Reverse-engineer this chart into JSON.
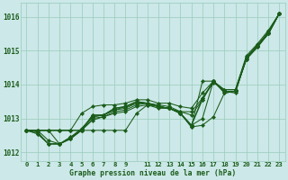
{
  "title": "Graphe pression niveau de la mer (hPa)",
  "bg_color": "#cce8e8",
  "grid_color": "#99ccbb",
  "line_color": "#1a5c1a",
  "xlim": [
    -0.5,
    23.5
  ],
  "ylim": [
    1011.75,
    1016.4
  ],
  "yticks": [
    1012,
    1013,
    1014,
    1015,
    1016
  ],
  "xticks": [
    0,
    1,
    2,
    3,
    4,
    5,
    6,
    7,
    8,
    9,
    10,
    11,
    12,
    13,
    14,
    15,
    16,
    17,
    18,
    19,
    20,
    21,
    22,
    23
  ],
  "xtick_labels": [
    "0",
    "1",
    "2",
    "3",
    "4",
    "5",
    "6",
    "7",
    "8",
    "9",
    "",
    "11",
    "12",
    "13",
    "14",
    "15",
    "16",
    "17",
    "18",
    "19",
    "20",
    "21",
    "22",
    "23"
  ],
  "series": [
    [
      1012.65,
      1012.65,
      1012.65,
      1012.25,
      1012.45,
      1012.65,
      1012.95,
      1013.05,
      1013.15,
      1013.2,
      1013.35,
      1013.4,
      1013.3,
      1013.3,
      1013.15,
      1012.75,
      1012.8,
      1013.05,
      1013.75,
      1013.8,
      1014.75,
      1015.15,
      1015.5,
      1016.1
    ],
    [
      1012.65,
      1012.65,
      1012.35,
      1012.25,
      1012.45,
      1012.7,
      1013.05,
      1013.1,
      1013.25,
      1013.3,
      1013.45,
      1013.45,
      1013.35,
      1013.3,
      1013.15,
      1012.8,
      1013.55,
      1014.1,
      1013.8,
      1013.8,
      1014.75,
      1015.1,
      1015.5,
      1016.1
    ],
    [
      1012.65,
      1012.55,
      1012.25,
      1012.25,
      1012.4,
      1012.7,
      1013.05,
      1013.1,
      1013.25,
      1013.35,
      1013.45,
      1013.45,
      1013.35,
      1013.3,
      1013.15,
      1012.8,
      1013.6,
      1014.1,
      1013.8,
      1013.8,
      1014.75,
      1015.1,
      1015.5,
      1016.1
    ],
    [
      1012.65,
      1012.55,
      1012.25,
      1012.25,
      1012.4,
      1012.65,
      1013.1,
      1013.1,
      1013.3,
      1013.35,
      1013.5,
      1013.45,
      1013.35,
      1013.3,
      1013.15,
      1012.75,
      1014.1,
      1014.1,
      1013.8,
      1013.75,
      1014.8,
      1015.15,
      1015.5,
      1016.1
    ],
    [
      1012.65,
      1012.6,
      1012.25,
      1012.25,
      1012.4,
      1012.65,
      1013.1,
      1013.1,
      1013.3,
      1013.35,
      1013.5,
      1013.45,
      1013.35,
      1013.3,
      1013.15,
      1012.8,
      1013.0,
      1014.1,
      1013.75,
      1013.8,
      1014.8,
      1015.15,
      1015.55,
      1016.1
    ]
  ],
  "top_series": [
    1012.65,
    1012.65,
    1012.65,
    1012.65,
    1012.65,
    1012.65,
    1013.0,
    1013.05,
    1013.2,
    1013.25,
    1013.4,
    1013.45,
    1013.4,
    1013.35,
    1013.2,
    1013.2,
    1013.6,
    1014.05,
    1013.85,
    1013.85,
    1014.8,
    1015.15,
    1015.55,
    1016.1
  ],
  "diverge_series": [
    1012.65,
    1012.65,
    1012.65,
    1012.65,
    1012.65,
    1012.65,
    1012.65,
    1012.65,
    1012.65,
    1012.65,
    1013.15,
    1013.4,
    1013.35,
    1013.3,
    1013.2,
    1013.1,
    1013.55,
    1014.1,
    1013.8,
    1013.8,
    1014.8,
    1015.15,
    1015.5,
    1016.1
  ],
  "straight_series": [
    1012.65,
    1012.65,
    1012.65,
    1012.65,
    1012.65,
    1013.15,
    1013.35,
    1013.4,
    1013.4,
    1013.45,
    1013.55,
    1013.55,
    1013.45,
    1013.45,
    1013.35,
    1013.3,
    1013.75,
    1014.1,
    1013.85,
    1013.85,
    1014.85,
    1015.2,
    1015.6,
    1016.1
  ]
}
